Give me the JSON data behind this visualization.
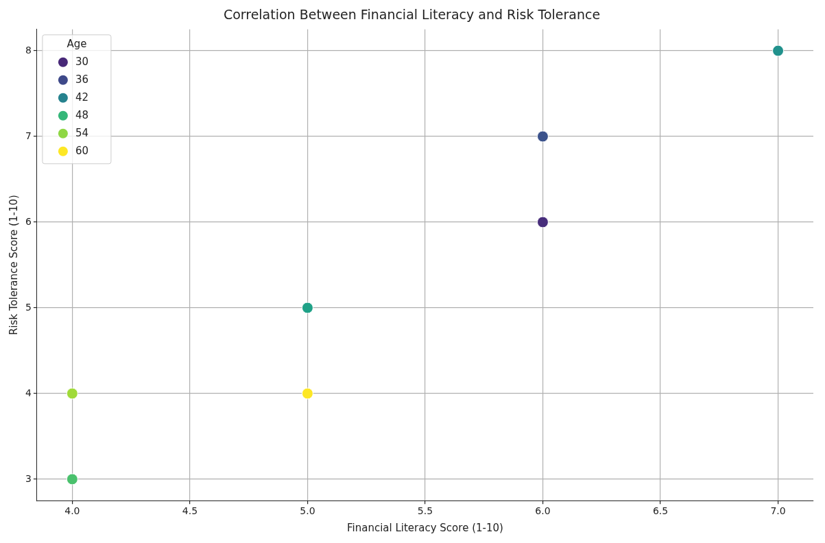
{
  "chart_data": {
    "type": "scatter",
    "title": "Correlation Between Financial Literacy and Risk Tolerance",
    "xlabel": "Financial Literacy Score (1-10)",
    "ylabel": "Risk Tolerance Score (1-10)",
    "legend_title": "Age",
    "x": [
      4,
      4,
      5,
      5,
      6,
      6,
      7
    ],
    "series": [
      {
        "values": [
          3,
          4,
          4,
          5,
          6,
          7,
          8
        ],
        "colors": [
          "#4ac16d",
          "#a0da39",
          "#fde725",
          "#1fa187",
          "#472d7b",
          "#3b528b",
          "#21918c"
        ]
      },
      {
        "name": "30",
        "color": "#482878",
        "values": [
          null,
          null,
          null,
          null,
          null,
          null,
          null
        ]
      },
      {
        "name": "36",
        "color": "#3e4989",
        "values": [
          null,
          null,
          null,
          null,
          null,
          null,
          null
        ]
      },
      {
        "name": "42",
        "color": "#26828e",
        "values": [
          null,
          null,
          null,
          null,
          null,
          null,
          null
        ]
      },
      {
        "name": "48",
        "color": "#35b779",
        "values": [
          null,
          null,
          null,
          null,
          null,
          null,
          null
        ]
      },
      {
        "name": "54",
        "color": "#8fd744",
        "values": [
          null,
          null,
          null,
          null,
          null,
          null,
          null
        ]
      },
      {
        "name": "60",
        "color": "#fde725",
        "values": [
          null,
          null,
          null,
          null,
          null,
          null,
          null
        ]
      }
    ],
    "xlim": [
      3.85,
      7.15
    ],
    "xticks": [
      {
        "value": 4,
        "label": "4.0"
      },
      {
        "value": 4.5,
        "label": "4.5"
      },
      {
        "value": 5,
        "label": "5.0"
      },
      {
        "value": 5.5,
        "label": "5.5"
      },
      {
        "value": 6,
        "label": "6.0"
      },
      {
        "value": 6.5,
        "label": "6.5"
      },
      {
        "value": 7,
        "label": "7.0"
      }
    ],
    "ylim": [
      2.75,
      8.25
    ],
    "yticks": [
      3,
      4,
      5,
      6,
      7,
      8
    ],
    "grid": true,
    "legend": "top left",
    "marker": "circle"
  }
}
